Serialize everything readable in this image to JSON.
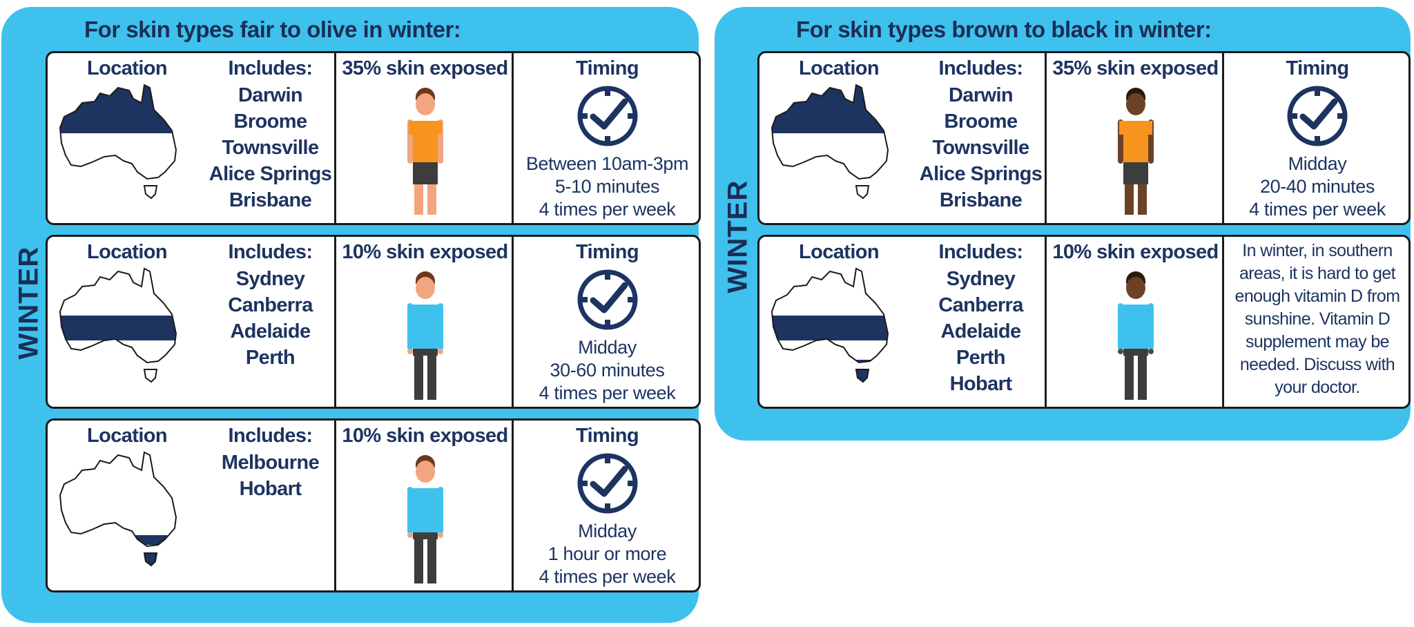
{
  "left_panel": {
    "title": "For skin types fair to olive in winter:",
    "season_label": "WINTER",
    "rows": [
      {
        "location_header": "Location",
        "includes_header": "Includes:",
        "cities": [
          "Darwin",
          "Broome",
          "Townsville",
          "Alice Springs",
          "Brisbane"
        ],
        "exposure_header": "35% skin exposed",
        "timing_header": "Timing",
        "timing_lines": [
          "Between 10am-3pm",
          "5-10 minutes",
          "4 times per week"
        ]
      },
      {
        "location_header": "Location",
        "includes_header": "Includes:",
        "cities": [
          "Sydney",
          "Canberra",
          "Adelaide",
          "Perth"
        ],
        "exposure_header": "10% skin exposed",
        "timing_header": "Timing",
        "timing_lines": [
          "Midday",
          "30-60 minutes",
          "4 times per week"
        ]
      },
      {
        "location_header": "Location",
        "includes_header": "Includes:",
        "cities": [
          "Melbourne",
          "Hobart"
        ],
        "exposure_header": "10% skin exposed",
        "timing_header": "Timing",
        "timing_lines": [
          "Midday",
          "1 hour or more",
          "4 times per week"
        ]
      }
    ]
  },
  "right_panel": {
    "title": "For skin types brown to black in winter:",
    "season_label": "WINTER",
    "rows": [
      {
        "location_header": "Location",
        "includes_header": "Includes:",
        "cities": [
          "Darwin",
          "Broome",
          "Townsville",
          "Alice Springs",
          "Brisbane"
        ],
        "exposure_header": "35% skin exposed",
        "timing_header": "Timing",
        "timing_lines": [
          "Midday",
          "20-40 minutes",
          "4 times per week"
        ]
      },
      {
        "location_header": "Location",
        "includes_header": "Includes:",
        "cities": [
          "Sydney",
          "Canberra",
          "Adelaide",
          "Perth",
          "Hobart"
        ],
        "exposure_header": "10% skin exposed",
        "note_lines": [
          "In winter, in southern",
          "areas, it is hard to get",
          "enough vitamin D from",
          "sunshine. Vitamin D",
          "supplement may be",
          "needed. Discuss with",
          "your doctor."
        ]
      }
    ]
  },
  "colors": {
    "panel_bg": "#3fc1ee",
    "navy": "#1d3461",
    "skin_light": "#f2a57e",
    "skin_dark": "#6b4226",
    "shirt_orange": "#f7941d",
    "shirt_blue": "#3fc1ee"
  },
  "icons": [
    "australia-map-icon",
    "person-icon",
    "clock-check-icon"
  ]
}
